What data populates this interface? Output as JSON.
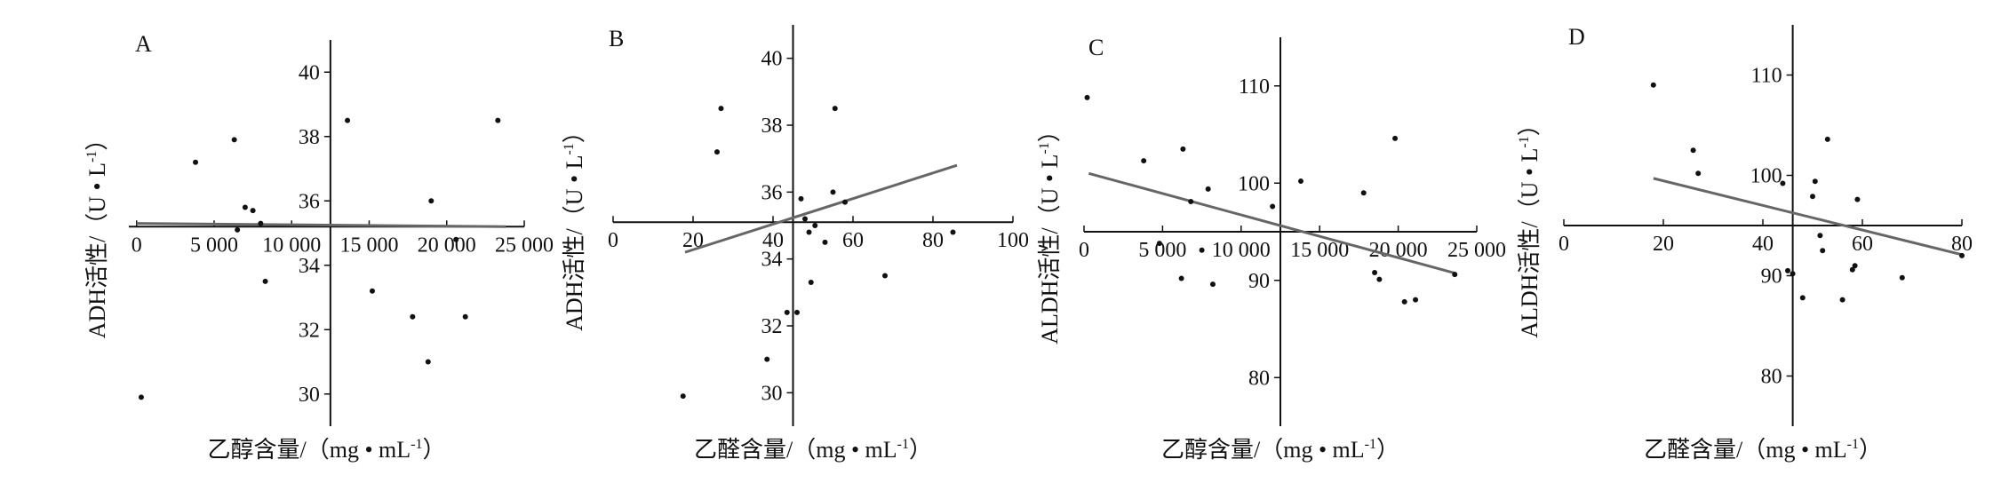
{
  "colors": {
    "axis": "#111111",
    "point": "#111111",
    "fit_line": "#666666",
    "background": "#ffffff"
  },
  "chart_data": [
    {
      "panel_label": "A",
      "type": "scatter",
      "xlabel": "乙醇含量/（mg • mL",
      "xlabel_sup": "-1",
      "xlabel_close": "）",
      "ylabel": "ADH活性/（U • L",
      "ylabel_sup": "-1",
      "ylabel_close": "）",
      "xlim": [
        -500,
        25000
      ],
      "ylim": [
        29,
        41
      ],
      "x_axis_cross_y": 35.2,
      "y_axis_cross_x": 12500,
      "xticks": [
        0,
        5000,
        10000,
        15000,
        20000,
        25000
      ],
      "xtick_labels": [
        "0",
        "5 000",
        "10 000",
        "15 000",
        "20 000",
        "25 000"
      ],
      "yticks": [
        30,
        32,
        34,
        36,
        38,
        40
      ],
      "ytick_labels": [
        "30",
        "32",
        "34",
        "36",
        "38",
        "40"
      ],
      "points": [
        {
          "x": 300,
          "y": 29.9
        },
        {
          "x": 3800,
          "y": 37.2
        },
        {
          "x": 6300,
          "y": 37.9
        },
        {
          "x": 6500,
          "y": 35.1
        },
        {
          "x": 7000,
          "y": 35.8
        },
        {
          "x": 7500,
          "y": 35.7
        },
        {
          "x": 8000,
          "y": 35.3
        },
        {
          "x": 8300,
          "y": 33.5
        },
        {
          "x": 13600,
          "y": 38.5
        },
        {
          "x": 15200,
          "y": 33.2
        },
        {
          "x": 17800,
          "y": 32.4
        },
        {
          "x": 18800,
          "y": 31.0
        },
        {
          "x": 19000,
          "y": 36.0
        },
        {
          "x": 20600,
          "y": 34.8
        },
        {
          "x": 21200,
          "y": 32.4
        },
        {
          "x": 23300,
          "y": 38.5
        }
      ],
      "fit_line": [
        {
          "x": 0,
          "y": 35.3
        },
        {
          "x": 23800,
          "y": 35.2
        }
      ]
    },
    {
      "panel_label": "B",
      "type": "scatter",
      "xlabel": "乙醛含量/（mg • mL",
      "xlabel_sup": "-1",
      "xlabel_close": "）",
      "ylabel": "ADH活性/（U • L",
      "ylabel_sup": "-1",
      "ylabel_close": "）",
      "xlim": [
        0,
        100
      ],
      "ylim": [
        29,
        41
      ],
      "x_axis_cross_y": 35.1,
      "y_axis_cross_x": 45,
      "xticks": [
        0,
        20,
        40,
        60,
        80,
        100
      ],
      "xtick_labels": [
        "0",
        "20",
        "40",
        "60",
        "80",
        "100"
      ],
      "yticks": [
        30,
        32,
        34,
        36,
        38,
        40
      ],
      "ytick_labels": [
        "30",
        "32",
        "34",
        "36",
        "38",
        "40"
      ],
      "points": [
        {
          "x": 17.5,
          "y": 29.9
        },
        {
          "x": 26,
          "y": 37.2
        },
        {
          "x": 27,
          "y": 38.5
        },
        {
          "x": 38.5,
          "y": 31.0
        },
        {
          "x": 43.5,
          "y": 32.4
        },
        {
          "x": 46,
          "y": 32.4
        },
        {
          "x": 47,
          "y": 35.8
        },
        {
          "x": 48,
          "y": 35.2
        },
        {
          "x": 49,
          "y": 34.8
        },
        {
          "x": 49.5,
          "y": 33.3
        },
        {
          "x": 50.5,
          "y": 35.0
        },
        {
          "x": 53,
          "y": 34.5
        },
        {
          "x": 55,
          "y": 36.0
        },
        {
          "x": 55.5,
          "y": 38.5
        },
        {
          "x": 58,
          "y": 35.7
        },
        {
          "x": 68,
          "y": 33.5
        },
        {
          "x": 85,
          "y": 34.8
        }
      ],
      "fit_line": [
        {
          "x": 18,
          "y": 34.2
        },
        {
          "x": 86,
          "y": 36.8
        }
      ]
    },
    {
      "panel_label": "C",
      "type": "scatter",
      "xlabel": "乙醇含量/（mg • mL",
      "xlabel_sup": "-1",
      "xlabel_close": "）",
      "ylabel": "ALDH活性/（U • L",
      "ylabel_sup": "-1",
      "ylabel_close": "）",
      "xlim": [
        0,
        25000
      ],
      "ylim": [
        75,
        115
      ],
      "x_axis_cross_y": 95,
      "y_axis_cross_x": 12500,
      "xticks": [
        0,
        5000,
        10000,
        15000,
        20000,
        25000
      ],
      "xtick_labels": [
        "0",
        "5 000",
        "10 000",
        "15 000",
        "20 000",
        "25 000"
      ],
      "yticks": [
        80,
        90,
        100,
        110
      ],
      "ytick_labels": [
        "80",
        "90",
        "100",
        "110"
      ],
      "points": [
        {
          "x": 200,
          "y": 108.8
        },
        {
          "x": 3800,
          "y": 102.3
        },
        {
          "x": 4800,
          "y": 93.8
        },
        {
          "x": 6300,
          "y": 103.5
        },
        {
          "x": 6200,
          "y": 90.2
        },
        {
          "x": 6800,
          "y": 98.1
        },
        {
          "x": 7500,
          "y": 93.1
        },
        {
          "x": 7900,
          "y": 99.4
        },
        {
          "x": 8200,
          "y": 89.6
        },
        {
          "x": 12000,
          "y": 97.6
        },
        {
          "x": 13800,
          "y": 100.2
        },
        {
          "x": 17800,
          "y": 99.0
        },
        {
          "x": 18500,
          "y": 90.8
        },
        {
          "x": 18800,
          "y": 90.1
        },
        {
          "x": 19800,
          "y": 104.6
        },
        {
          "x": 20400,
          "y": 87.8
        },
        {
          "x": 21100,
          "y": 88.0
        },
        {
          "x": 23600,
          "y": 90.6
        }
      ],
      "fit_line": [
        {
          "x": 300,
          "y": 101.0
        },
        {
          "x": 23700,
          "y": 90.7
        }
      ]
    },
    {
      "panel_label": "D",
      "type": "scatter",
      "xlabel": "乙醛含量/（mg • mL",
      "xlabel_sup": "-1",
      "xlabel_close": "）",
      "ylabel": "ALDH活性/（U • L",
      "ylabel_sup": "-1",
      "ylabel_close": "）",
      "xlim": [
        0,
        80
      ],
      "ylim": [
        75,
        115
      ],
      "x_axis_cross_y": 95,
      "y_axis_cross_x": 46,
      "xticks": [
        0,
        20,
        40,
        60,
        80
      ],
      "xtick_labels": [
        "0",
        "20",
        "40",
        "60",
        "80"
      ],
      "yticks": [
        80,
        90,
        100,
        110
      ],
      "ytick_labels": [
        "80",
        "90",
        "100",
        "110"
      ],
      "points": [
        {
          "x": 18,
          "y": 109
        },
        {
          "x": 26,
          "y": 102.5
        },
        {
          "x": 27,
          "y": 100.2
        },
        {
          "x": 44,
          "y": 99.2
        },
        {
          "x": 45,
          "y": 90.5
        },
        {
          "x": 46,
          "y": 90.2
        },
        {
          "x": 48,
          "y": 87.8
        },
        {
          "x": 50,
          "y": 97.9
        },
        {
          "x": 50.5,
          "y": 99.4
        },
        {
          "x": 51.5,
          "y": 94.0
        },
        {
          "x": 52,
          "y": 92.5
        },
        {
          "x": 53,
          "y": 103.6
        },
        {
          "x": 56,
          "y": 87.6
        },
        {
          "x": 58,
          "y": 90.6
        },
        {
          "x": 58.5,
          "y": 91.0
        },
        {
          "x": 59,
          "y": 97.6
        },
        {
          "x": 68,
          "y": 89.8
        },
        {
          "x": 80,
          "y": 92.0
        }
      ],
      "fit_line": [
        {
          "x": 18,
          "y": 99.7
        },
        {
          "x": 80,
          "y": 92.1
        }
      ]
    }
  ]
}
